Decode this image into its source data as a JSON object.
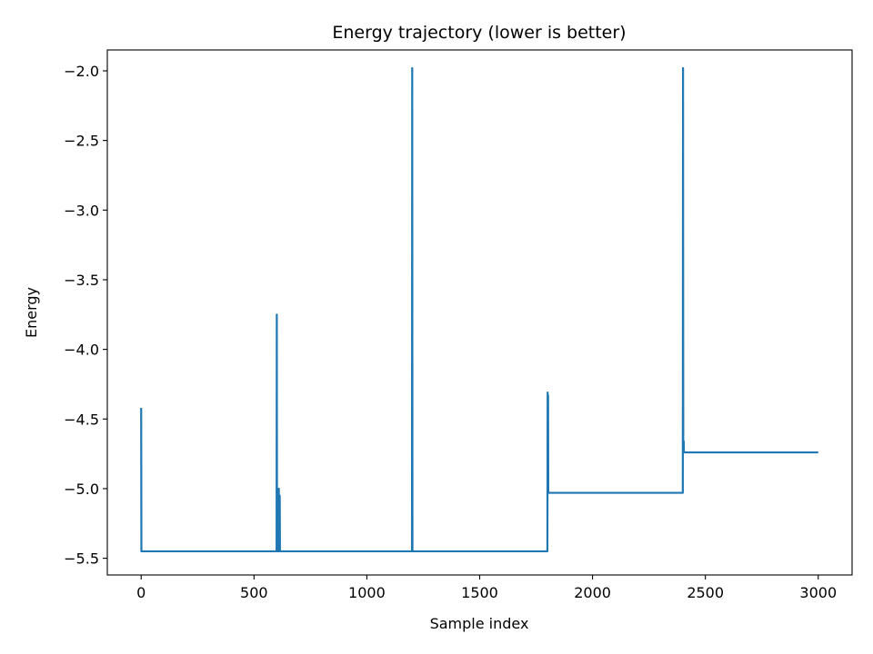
{
  "chart_data": {
    "type": "line",
    "title": "Energy trajectory (lower is better)",
    "xlabel": "Sample index",
    "ylabel": "Energy",
    "xlim": [
      -150,
      3150
    ],
    "ylim": [
      -5.62,
      -1.85
    ],
    "xticks": [
      0,
      500,
      1000,
      1500,
      2000,
      2500,
      3000
    ],
    "yticks": [
      -5.5,
      -5.0,
      -4.5,
      -4.0,
      -3.5,
      -3.0,
      -2.5,
      -2.0
    ],
    "xtick_labels": [
      "0",
      "500",
      "1000",
      "1500",
      "2000",
      "2500",
      "3000"
    ],
    "ytick_labels": [
      "−5.5",
      "−5.0",
      "−4.5",
      "−4.0",
      "−3.5",
      "−3.0",
      "−2.5",
      "−2.0"
    ],
    "grid": false,
    "color": "#1f77b4",
    "series": [
      {
        "x": [
          0,
          1,
          2,
          600,
          601,
          602,
          603,
          604,
          605,
          609,
          610,
          611,
          613,
          614,
          615,
          1200,
          1201,
          1202,
          1203,
          1800,
          1801,
          1802,
          1803,
          1804,
          2400,
          2401,
          2402,
          2403,
          2404,
          2405,
          2406,
          3000
        ],
        "y": [
          -4.42,
          -5.45,
          -5.45,
          -5.45,
          -3.75,
          -5.45,
          -5.45,
          -5.45,
          -5.45,
          -5.45,
          -5.0,
          -5.45,
          -5.45,
          -5.05,
          -5.45,
          -5.45,
          -1.98,
          -5.45,
          -5.45,
          -5.45,
          -4.31,
          -5.03,
          -4.33,
          -5.03,
          -5.03,
          -1.98,
          -4.74,
          -4.74,
          -4.66,
          -4.74,
          -4.74,
          -4.74
        ]
      }
    ]
  }
}
